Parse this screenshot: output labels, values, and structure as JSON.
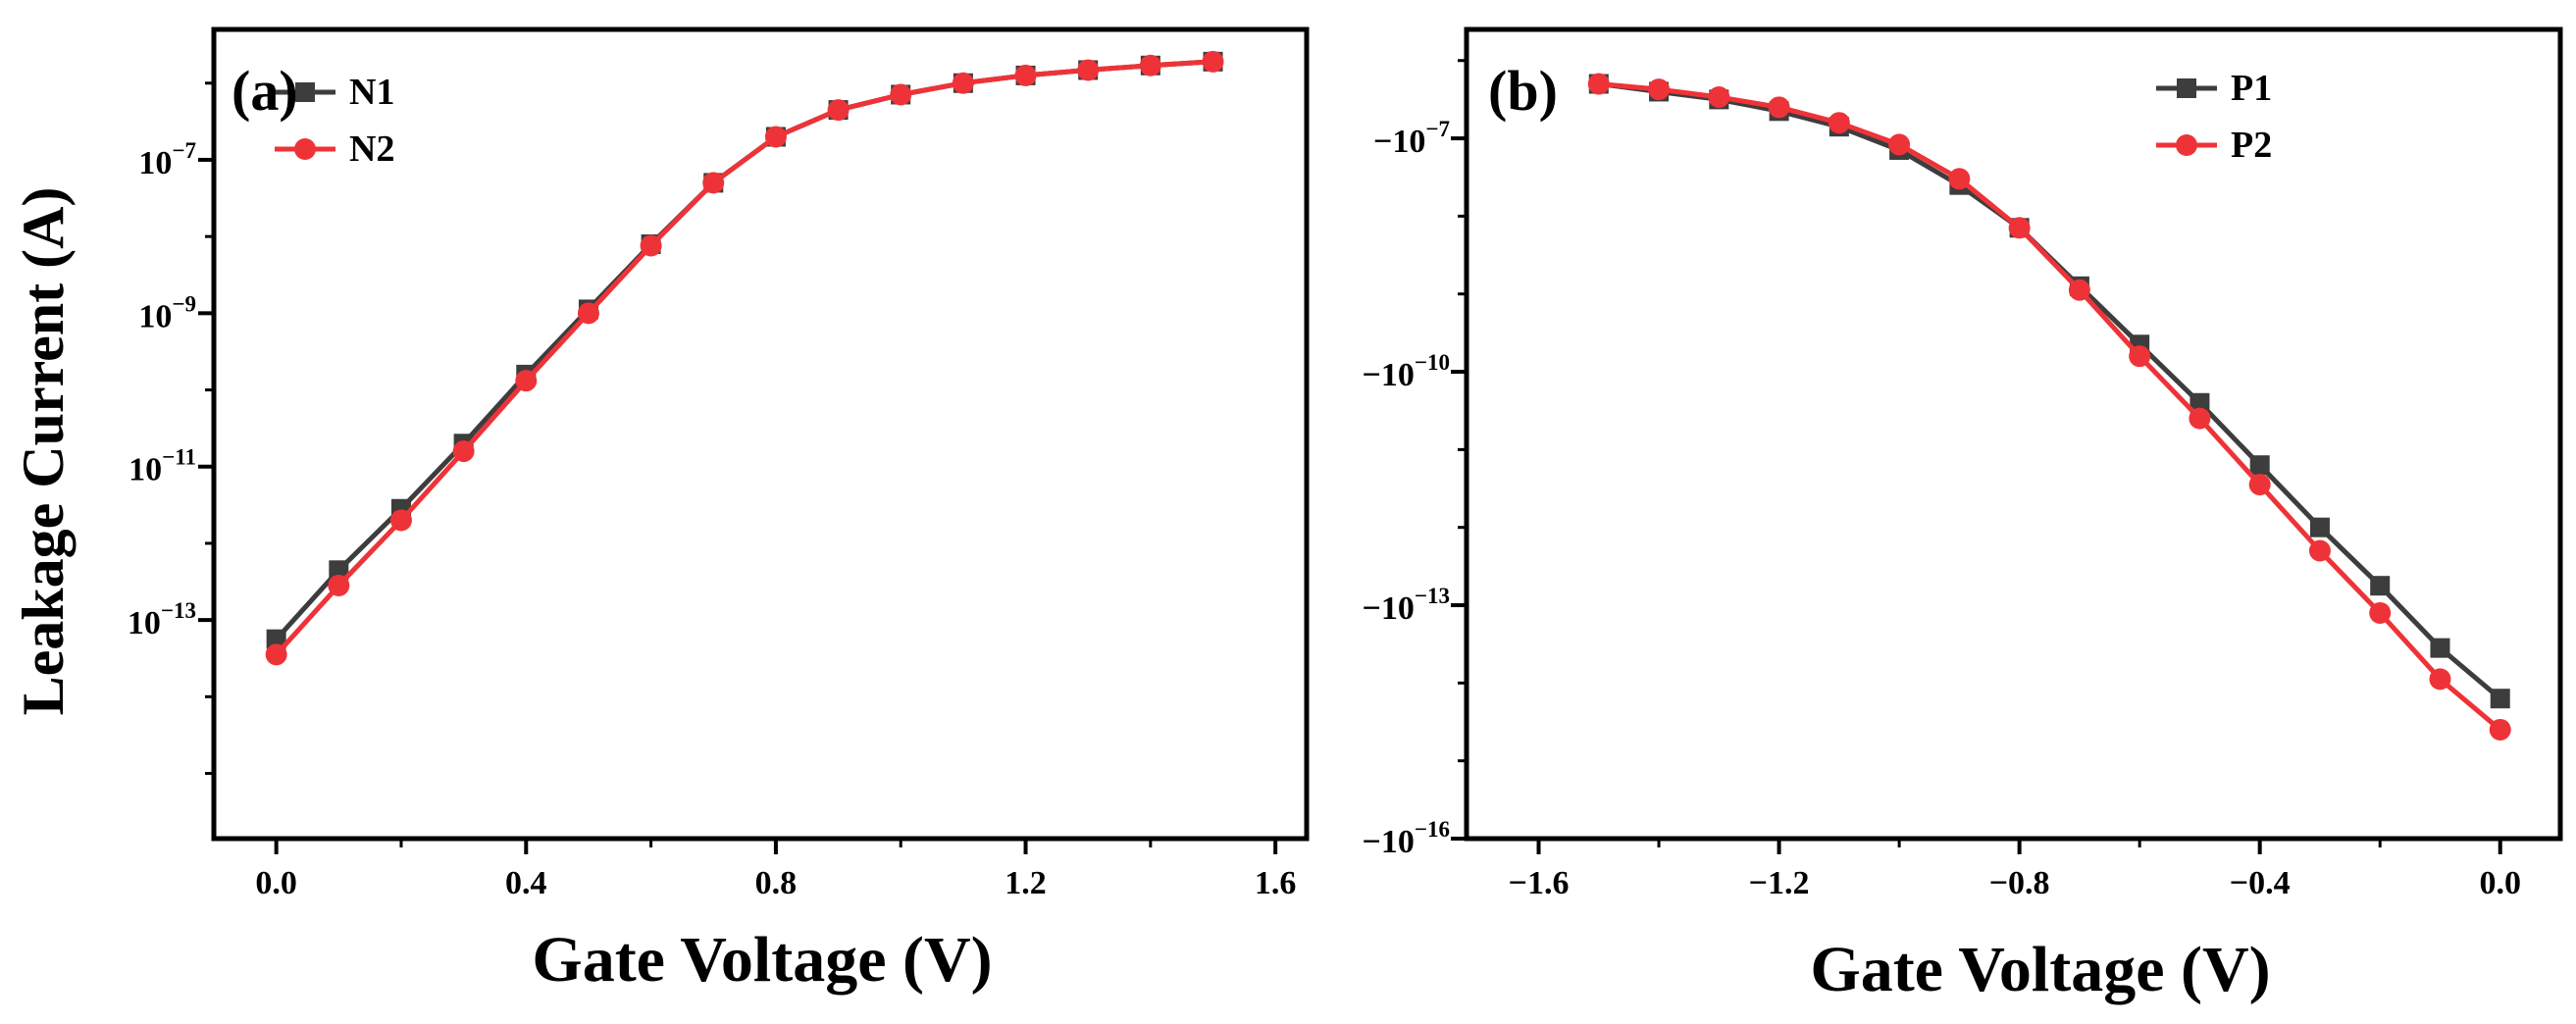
{
  "chart_data": [
    {
      "type": "line",
      "panel_label": "(a)",
      "title": "",
      "xlabel": "Gate Voltage (V)",
      "ylabel": "Leakage Current (A)",
      "yscale": "log",
      "xlim": [
        -0.1,
        1.65
      ],
      "ylim_log10": [
        -15.85,
        -5.3
      ],
      "x_ticks": [
        {
          "value": 0.0,
          "label": "0.0"
        },
        {
          "value": 0.4,
          "label": "0.4"
        },
        {
          "value": 0.8,
          "label": "0.8"
        },
        {
          "value": 1.2,
          "label": "1.2"
        },
        {
          "value": 1.6,
          "label": "1.6"
        }
      ],
      "y_ticks": [
        {
          "exp": -13,
          "base": "10",
          "sup": "−13"
        },
        {
          "exp": -11,
          "base": "10",
          "sup": "−11"
        },
        {
          "exp": -9,
          "base": "10",
          "sup": "−9"
        },
        {
          "exp": -7,
          "base": "10",
          "sup": "−7"
        }
      ],
      "legend_position": "top-left",
      "series": [
        {
          "name": "N1",
          "color": "#3d3d3d",
          "marker": "square",
          "x": [
            0.0,
            0.1,
            0.2,
            0.3,
            0.4,
            0.5,
            0.6,
            0.7,
            0.8,
            0.9,
            1.0,
            1.1,
            1.2,
            1.3,
            1.4,
            1.5
          ],
          "log10_y": [
            -13.25,
            -12.35,
            -11.55,
            -10.7,
            -9.8,
            -8.95,
            -8.1,
            -7.3,
            -6.7,
            -6.35,
            -6.15,
            -6.0,
            -5.9,
            -5.83,
            -5.77,
            -5.72
          ]
        },
        {
          "name": "N2",
          "color": "#ee3338",
          "marker": "circle",
          "x": [
            0.0,
            0.1,
            0.2,
            0.3,
            0.4,
            0.5,
            0.6,
            0.7,
            0.8,
            0.9,
            1.0,
            1.1,
            1.2,
            1.3,
            1.4,
            1.5
          ],
          "log10_y": [
            -13.45,
            -12.55,
            -11.7,
            -10.8,
            -9.88,
            -9.0,
            -8.12,
            -7.3,
            -6.7,
            -6.35,
            -6.15,
            -6.0,
            -5.9,
            -5.83,
            -5.77,
            -5.72
          ]
        }
      ]
    },
    {
      "type": "line",
      "panel_label": "(b)",
      "title": "",
      "xlabel": "Gate Voltage (V)",
      "ylabel": "",
      "yscale": "log (negative values)",
      "xlim": [
        -1.72,
        0.1
      ],
      "ylim_log10": [
        -16.0,
        -5.6
      ],
      "x_ticks": [
        {
          "value": -1.6,
          "label": "−1.6"
        },
        {
          "value": -1.2,
          "label": "−1.2"
        },
        {
          "value": -0.8,
          "label": "−0.8"
        },
        {
          "value": -0.4,
          "label": "−0.4"
        },
        {
          "value": 0.0,
          "label": "0.0"
        }
      ],
      "y_ticks": [
        {
          "exp": -16,
          "base": "−10",
          "sup": "−16"
        },
        {
          "exp": -13,
          "base": "−10",
          "sup": "−13"
        },
        {
          "exp": -10,
          "base": "−10",
          "sup": "−10"
        },
        {
          "exp": -7,
          "base": "−10",
          "sup": "−7"
        }
      ],
      "legend_position": "top-right",
      "series": [
        {
          "name": "P1",
          "color": "#3d3d3d",
          "marker": "square",
          "x": [
            -1.5,
            -1.4,
            -1.3,
            -1.2,
            -1.1,
            -1.0,
            -0.9,
            -0.8,
            -0.7,
            -0.6,
            -0.5,
            -0.4,
            -0.3,
            -0.2,
            -0.1,
            0.0
          ],
          "log10_y": [
            -6.3,
            -6.4,
            -6.5,
            -6.65,
            -6.85,
            -7.15,
            -7.6,
            -8.15,
            -8.9,
            -9.65,
            -10.4,
            -11.2,
            -12.0,
            -12.75,
            -13.55,
            -14.2
          ]
        },
        {
          "name": "P2",
          "color": "#ee3338",
          "marker": "circle",
          "x": [
            -1.5,
            -1.4,
            -1.3,
            -1.2,
            -1.1,
            -1.0,
            -0.9,
            -0.8,
            -0.7,
            -0.6,
            -0.5,
            -0.4,
            -0.3,
            -0.2,
            -0.1,
            0.0
          ],
          "log10_y": [
            -6.3,
            -6.37,
            -6.47,
            -6.6,
            -6.8,
            -7.08,
            -7.52,
            -8.15,
            -8.95,
            -9.8,
            -10.6,
            -11.45,
            -12.3,
            -13.1,
            -13.95,
            -14.6
          ]
        }
      ]
    }
  ]
}
